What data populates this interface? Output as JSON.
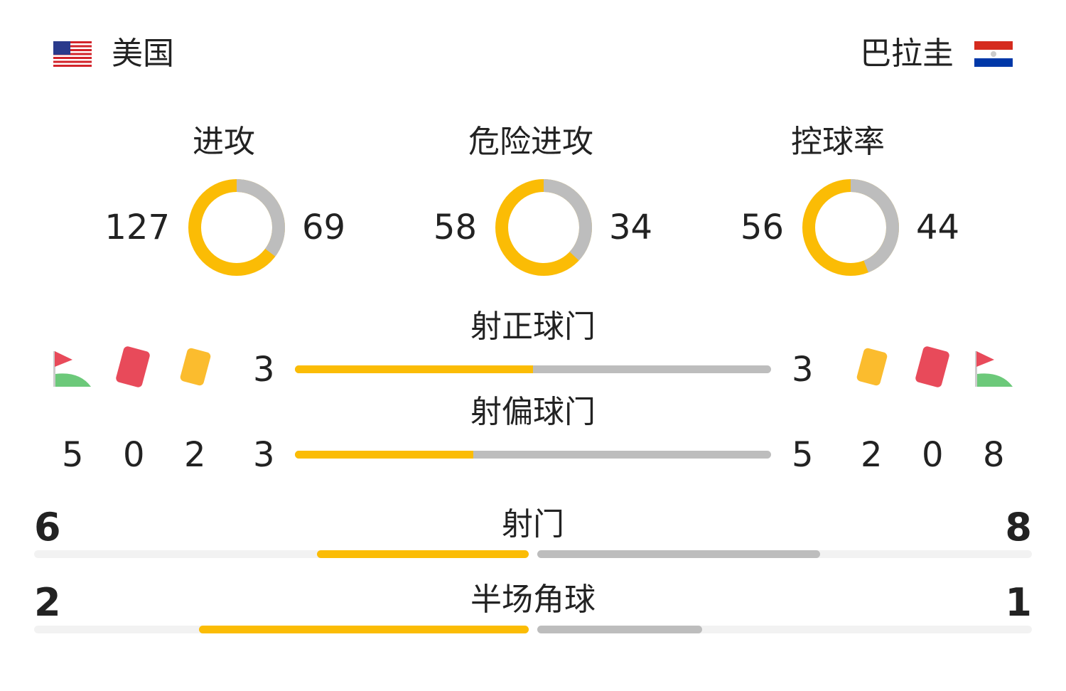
{
  "home": {
    "name": "美国",
    "flag": "us-flag-icon"
  },
  "away": {
    "name": "巴拉圭",
    "flag": "paraguay-flag-icon"
  },
  "colors": {
    "home": "#fbbc05",
    "away": "#bdbdbd",
    "track": "#f2f2f2"
  },
  "donuts": [
    {
      "label": "进攻",
      "home": 127,
      "away": 69,
      "home_text": "127",
      "away_text": "69"
    },
    {
      "label": "危险进攻",
      "home": 58,
      "away": 34,
      "home_text": "58",
      "away_text": "34"
    },
    {
      "label": "控球率",
      "home": 56,
      "away": 44,
      "home_text": "56",
      "away_text": "44"
    }
  ],
  "bars": [
    {
      "label": "射正球门",
      "home": 3,
      "away": 3,
      "home_text": "3",
      "away_text": "3"
    },
    {
      "label": "射偏球门",
      "home": 3,
      "away": 5,
      "home_text": "3",
      "away_text": "5"
    }
  ],
  "cards": {
    "home": {
      "corners": "5",
      "red": "0",
      "yellow": "2"
    },
    "away": {
      "yellow": "2",
      "red": "0",
      "corners": "8"
    }
  },
  "wide": [
    {
      "label": "射门",
      "home": 6,
      "away": 8,
      "home_text": "6",
      "away_text": "8"
    },
    {
      "label": "半场角球",
      "home": 2,
      "away": 1,
      "home_text": "2",
      "away_text": "1"
    }
  ]
}
